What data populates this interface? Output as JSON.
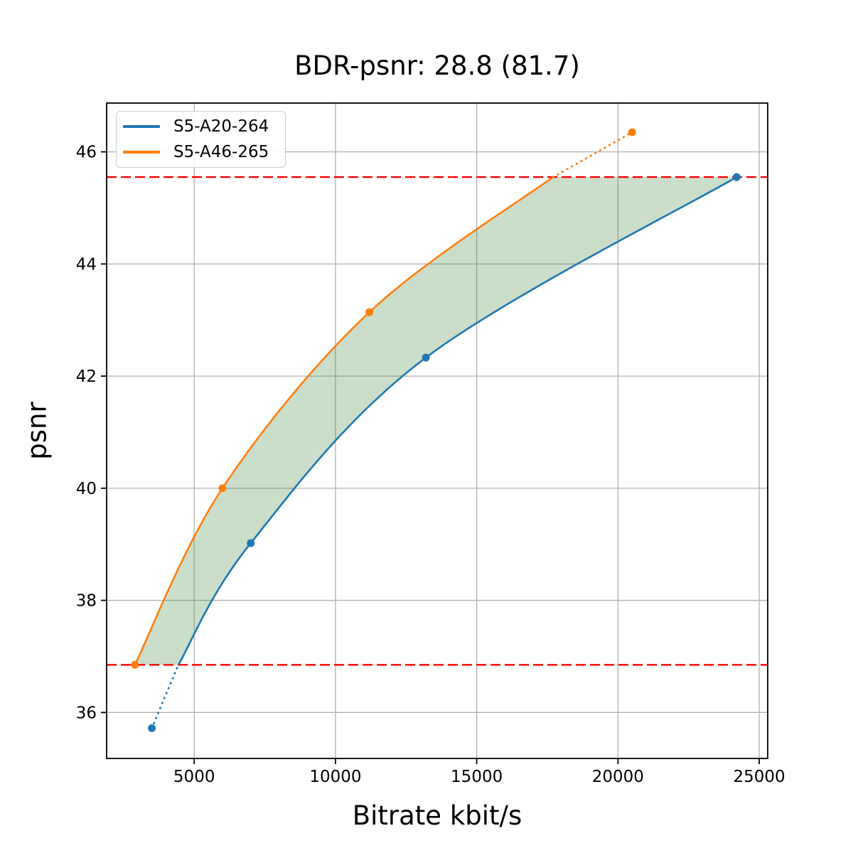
{
  "figure": {
    "background": "#ffffff",
    "title": "BDR-psnr: 28.8 (81.7)"
  },
  "chart_data": {
    "type": "line",
    "title": "BDR-psnr: 28.8 (81.7)",
    "xlabel": "Bitrate kbit/s",
    "ylabel": "psnr",
    "xlim": [
      1900,
      25300
    ],
    "ylim": [
      35.18,
      46.87
    ],
    "xticks": [
      5000,
      10000,
      15000,
      20000,
      25000
    ],
    "yticks": [
      36,
      38,
      40,
      42,
      44,
      46
    ],
    "grid": true,
    "legend_position": "upper-left",
    "series": [
      {
        "name": "S5-A20-264",
        "color": "#1f77b4",
        "marker": "circle",
        "points": [
          [
            3500,
            35.72
          ],
          [
            7000,
            39.02
          ],
          [
            13200,
            42.33
          ],
          [
            24200,
            45.55
          ]
        ],
        "dotted_segment": "below crossing with lower bound",
        "crossing_with_lower_bound": [
          4440,
          36.85
        ]
      },
      {
        "name": "S5-A46-265",
        "color": "#ff7f0e",
        "marker": "circle",
        "points": [
          [
            2900,
            36.85
          ],
          [
            6000,
            40.0
          ],
          [
            11200,
            43.14
          ],
          [
            20500,
            46.35
          ]
        ],
        "dotted_segment": "above crossing with upper bound",
        "crossing_with_upper_bound": [
          17700,
          45.55
        ]
      }
    ],
    "bd_bounds": {
      "lower_psnr": 36.85,
      "upper_psnr": 45.55,
      "line_color": "#ff0000",
      "line_style": "dashed"
    },
    "shaded_region": {
      "between": [
        "S5-A46-265",
        "S5-A20-264"
      ],
      "color": "rgba(44,123,44,0.25)"
    },
    "styles": {
      "grid_color": "#b0b0b0",
      "spine_color": "#000000",
      "tick_label_size": 23
    }
  },
  "legend": {
    "items": [
      {
        "label": "S5-A20-264",
        "color": "#1f77b4"
      },
      {
        "label": "S5-A46-265",
        "color": "#ff7f0e"
      }
    ]
  }
}
